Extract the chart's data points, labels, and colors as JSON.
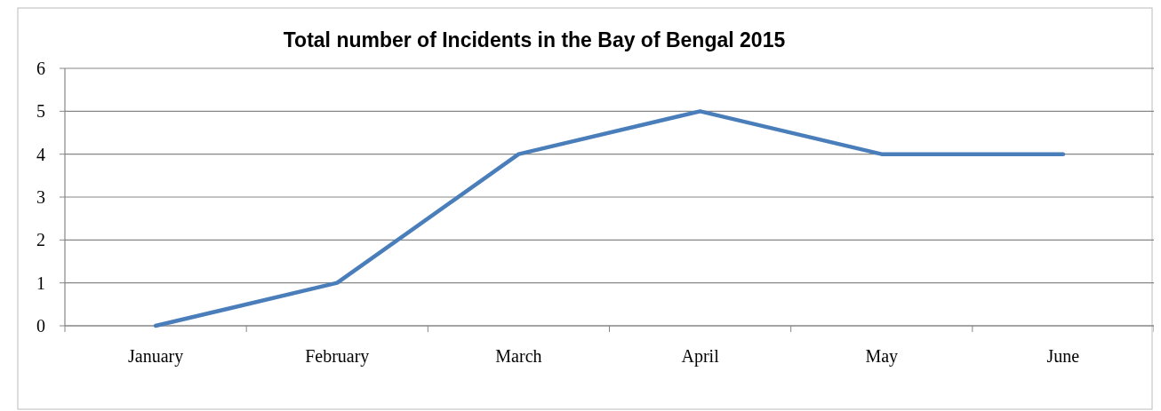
{
  "chart_data": {
    "type": "line",
    "title": "Total number of Incidents in the Bay of Bengal 2015",
    "categories": [
      "January",
      "February",
      "March",
      "April",
      "May",
      "June"
    ],
    "series": [
      {
        "color": "#4a7ebb",
        "values": [
          0,
          1,
          4,
          5,
          4,
          4
        ]
      }
    ],
    "ylim": [
      0,
      6
    ],
    "yticks": [
      0,
      1,
      2,
      3,
      4,
      5,
      6
    ],
    "grid": "y",
    "marker": "none",
    "line_style": "solid"
  }
}
